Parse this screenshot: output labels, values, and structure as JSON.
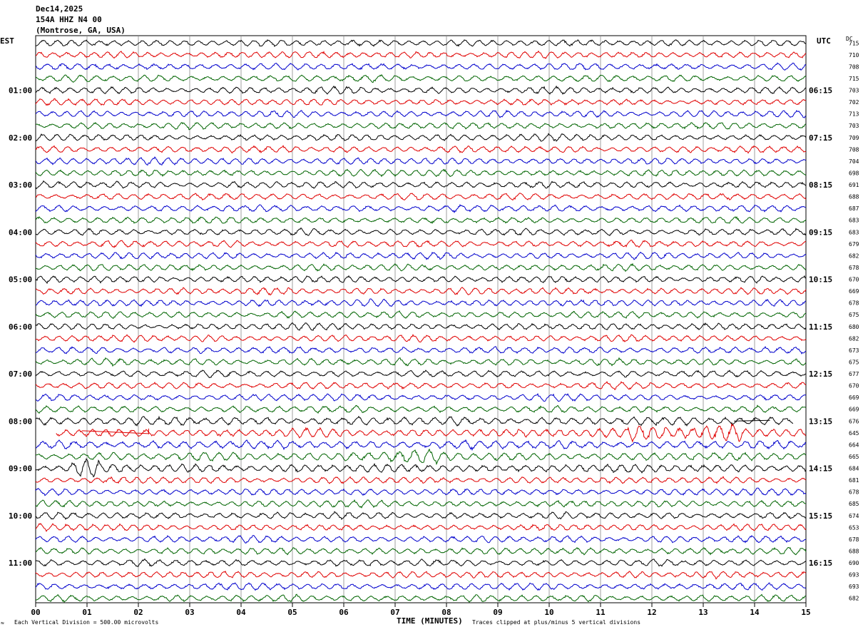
{
  "header": {
    "date": "Dec14,2025",
    "station": "154A HHZ N4 00",
    "location": "(Montrose, GA, USA)"
  },
  "labels": {
    "left_tz": "EST",
    "right_tz": "UTC",
    "dc": "DC",
    "xlabel": "TIME (MINUTES)",
    "scale_note": "Each Vertical Division =  500.00 microvolts",
    "clip_note": "Traces clipped at plus/minus 5 vertical divisions",
    "corner_mark": "≈"
  },
  "chart_data": {
    "type": "line",
    "title": "154A HHZ N4 00",
    "xlabel": "TIME (MINUTES)",
    "xlim": [
      0,
      15
    ],
    "x_ticks": [
      "00",
      "01",
      "02",
      "03",
      "04",
      "05",
      "06",
      "07",
      "08",
      "09",
      "10",
      "11",
      "12",
      "13",
      "14",
      "15"
    ],
    "trace_colors": [
      "#000000",
      "#e00000",
      "#0000cc",
      "#006400"
    ],
    "trace_count": 48,
    "left_hour_labels": [
      "01:00",
      "02:00",
      "03:00",
      "04:00",
      "05:00",
      "06:00",
      "07:00",
      "08:00",
      "09:00",
      "10:00",
      "11:00"
    ],
    "right_hour_labels": [
      "06:15",
      "07:15",
      "08:15",
      "09:15",
      "10:15",
      "11:15",
      "12:15",
      "13:15",
      "14:15",
      "15:15",
      "16:15"
    ],
    "dc_offsets": [
      "715",
      "710",
      "708",
      "715",
      "703",
      "702",
      "713",
      "703",
      "709",
      "708",
      "704",
      "698",
      "691",
      "688",
      "687",
      "683",
      "683",
      "679",
      "682",
      "678",
      "670",
      "669",
      "678",
      "675",
      "680",
      "682",
      "673",
      "675",
      "677",
      "670",
      "669",
      "669",
      "676",
      "645",
      "664",
      "665",
      "684",
      "681",
      "678",
      "685",
      "674",
      "653",
      "678",
      "688",
      "690",
      "693",
      "693",
      "682"
    ],
    "event_rows": [
      32,
      33,
      34,
      35,
      36
    ],
    "grid": true
  }
}
